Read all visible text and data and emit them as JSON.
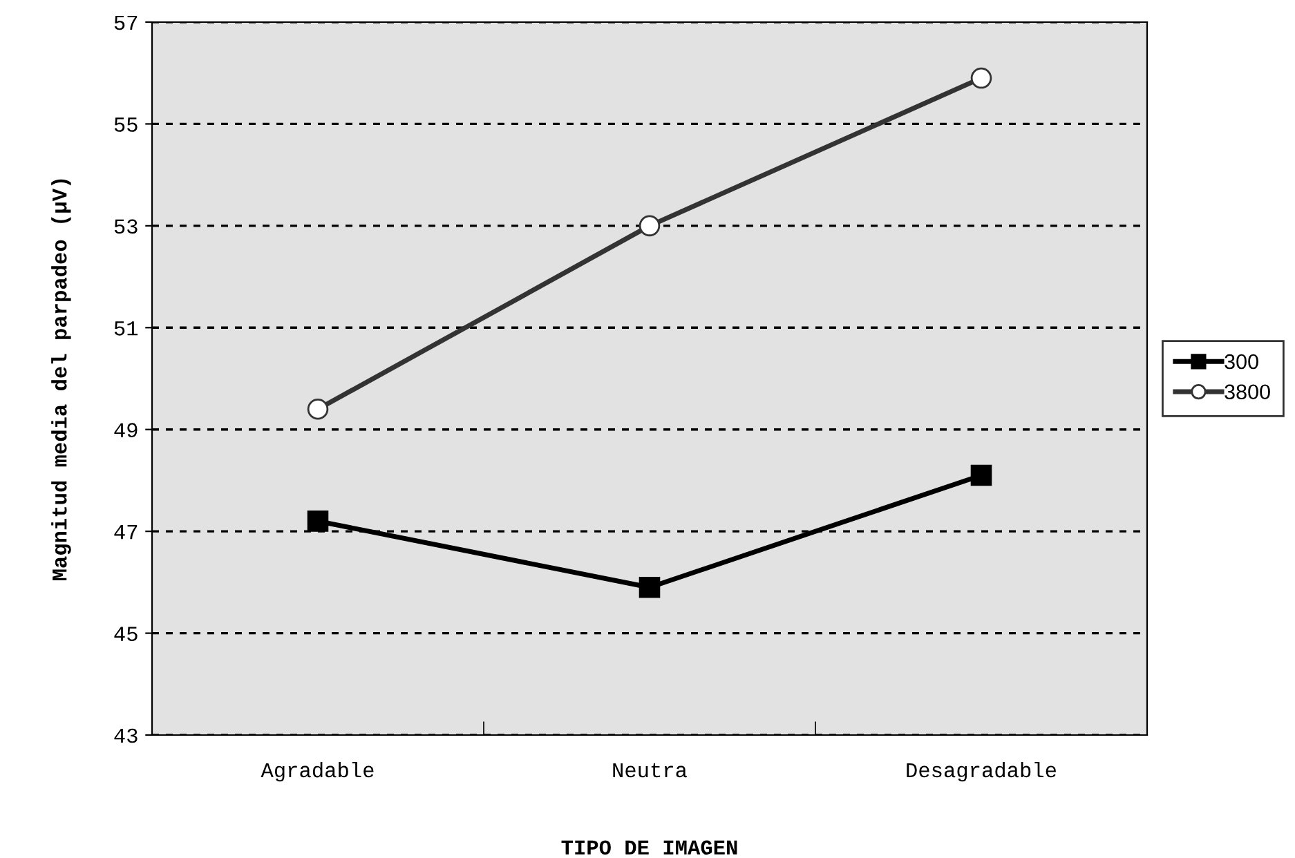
{
  "chart_data": {
    "type": "line",
    "xlabel": "TIPO DE IMAGEN",
    "ylabel": "Magnitud media del parpadeo (µV)",
    "categories": [
      "Agradable",
      "Neutra",
      "Desagradable"
    ],
    "series": [
      {
        "name": "300",
        "color": "#000000",
        "values": [
          47.2,
          45.9,
          48.1
        ],
        "marker": "square"
      },
      {
        "name": "3800",
        "color": "#333333",
        "values": [
          49.4,
          53.0,
          55.9
        ],
        "marker": "circle"
      }
    ],
    "ylim": [
      43,
      57
    ],
    "yticks": [
      43,
      45,
      47,
      49,
      51,
      53,
      55,
      57
    ],
    "grid": "y",
    "legend": "right",
    "line_style": "solid"
  }
}
